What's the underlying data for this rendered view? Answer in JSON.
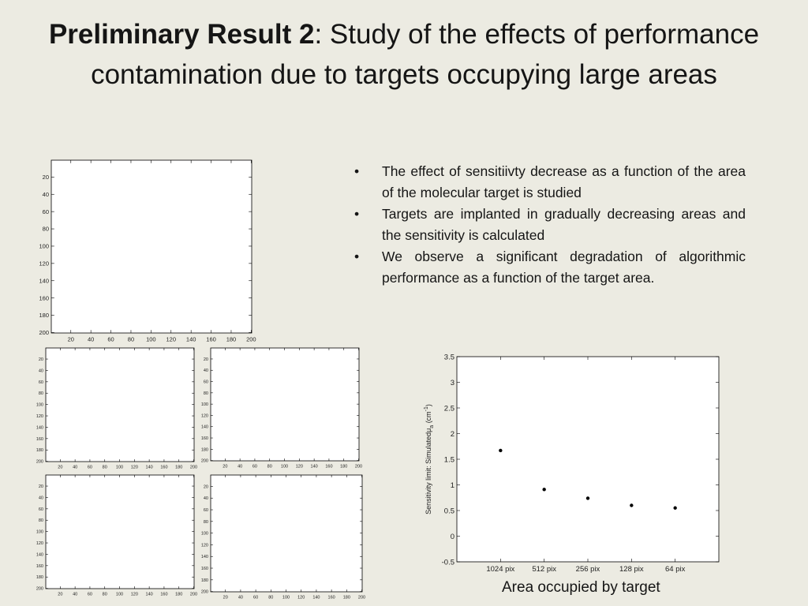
{
  "slide": {
    "title_bold": "Preliminary Result 2",
    "title_rest": ": Study of the effects of performance contamination due to targets occupying large areas",
    "bullets": [
      "The effect of sensitiivty decrease as a function of the area of the molecular target is studied",
      "Targets are implanted in gradually decreasing areas and the sensitivity is calculated",
      "We observe a significant degradation of algorithmic performance as a function of the target area."
    ],
    "bullet_glyph": "•",
    "caption": "Area occupied by target"
  },
  "image_panels": {
    "tick_labels": [
      "20",
      "40",
      "60",
      "80",
      "100",
      "120",
      "140",
      "160",
      "180",
      "200"
    ]
  },
  "chart_data": {
    "type": "scatter",
    "categories": [
      "1024 pix",
      "512 pix",
      "256 pix",
      "128 pix",
      "64 pix"
    ],
    "values": [
      1.67,
      0.91,
      0.74,
      0.6,
      0.55
    ],
    "ylabel": "Sensitivity limit: Simulatedμ",
    "ylabel_sub": "a",
    "ylabel_unit": "(cm",
    "ylabel_sup": "-1",
    "ylabel_close": ")",
    "ylim": [
      -0.5,
      3.5
    ],
    "yticks": [
      "-0.5",
      "0",
      "0.5",
      "1",
      "1.5",
      "2",
      "2.5",
      "3",
      "3.5"
    ],
    "grid": false,
    "marker_color": "#000000"
  }
}
